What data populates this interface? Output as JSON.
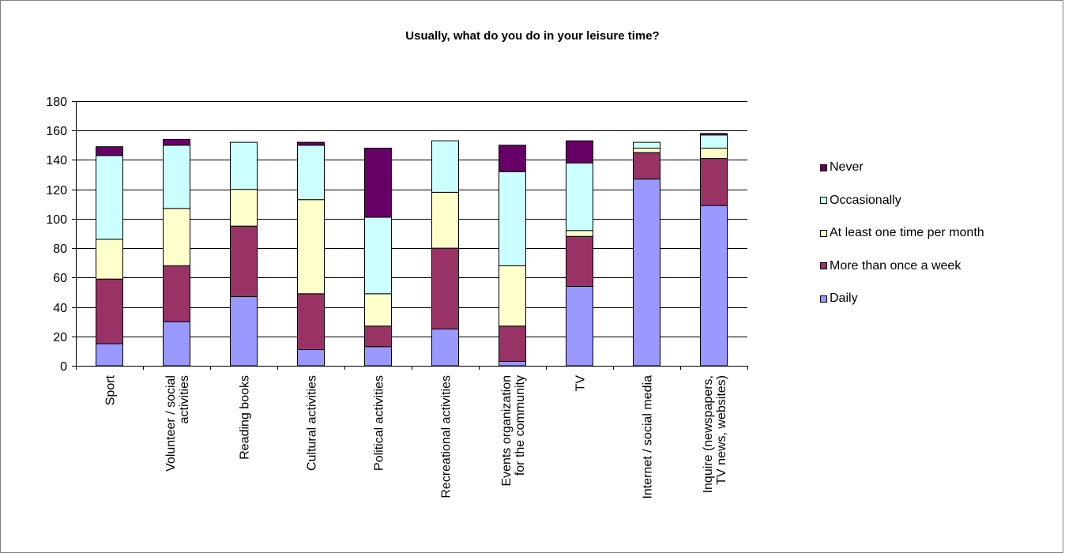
{
  "chart_data": {
    "type": "bar",
    "stacked": true,
    "title": "Usually, what do you do in your leisure time?",
    "categories": [
      "Sport",
      "Volunteer / social activities",
      "Reading books",
      "Cultural activities",
      "Political activities",
      "Recreational activities",
      "Events organization for the community",
      "TV",
      "Internet / social media",
      "Inquire (newspapers, TV news, websites)"
    ],
    "category_lines": [
      [
        "Sport"
      ],
      [
        "Volunteer / social",
        "activities"
      ],
      [
        "Reading books"
      ],
      [
        "Cultural activities"
      ],
      [
        "Political activities"
      ],
      [
        "Recreational activities"
      ],
      [
        "Events organization",
        "for the community"
      ],
      [
        "TV"
      ],
      [
        "Internet / social media"
      ],
      [
        "Inquire (newspapers,",
        "TV news, websites)"
      ]
    ],
    "series": [
      {
        "name": "Daily",
        "color": "#9999ff",
        "values": [
          15,
          30,
          47,
          11,
          13,
          25,
          3,
          54,
          127,
          109
        ]
      },
      {
        "name": "More than once a week",
        "color": "#993366",
        "values": [
          44,
          38,
          48,
          38,
          14,
          55,
          24,
          34,
          18,
          32
        ]
      },
      {
        "name": "At least one time per month",
        "color": "#ffffcc",
        "values": [
          27,
          39,
          25,
          64,
          22,
          38,
          41,
          4,
          3,
          7
        ]
      },
      {
        "name": "Occasionally",
        "color": "#ccffff",
        "values": [
          57,
          43,
          32,
          37,
          52,
          35,
          64,
          46,
          4,
          9
        ]
      },
      {
        "name": "Never",
        "color": "#660066",
        "values": [
          6,
          4,
          0,
          2,
          47,
          0,
          18,
          15,
          0,
          1
        ]
      }
    ],
    "ylim": [
      0,
      180
    ],
    "yticks": [
      0,
      20,
      40,
      60,
      80,
      100,
      120,
      140,
      160,
      180
    ],
    "grid": true,
    "legend_position": "right",
    "xlabel": "",
    "ylabel": ""
  }
}
